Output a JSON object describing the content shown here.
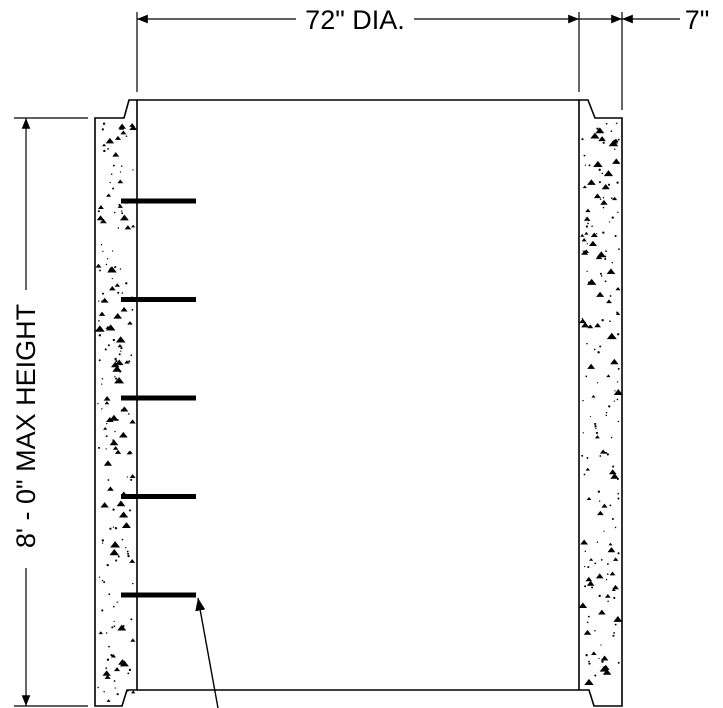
{
  "diagram": {
    "dimensions": {
      "diameter_label": "72\" DIA.",
      "wall_thickness_label": "7\"",
      "height_label": "8' - 0\" MAX HEIGHT"
    },
    "steps": {
      "count": 5
    },
    "colors": {
      "line": "#000000",
      "background": "#ffffff"
    }
  }
}
